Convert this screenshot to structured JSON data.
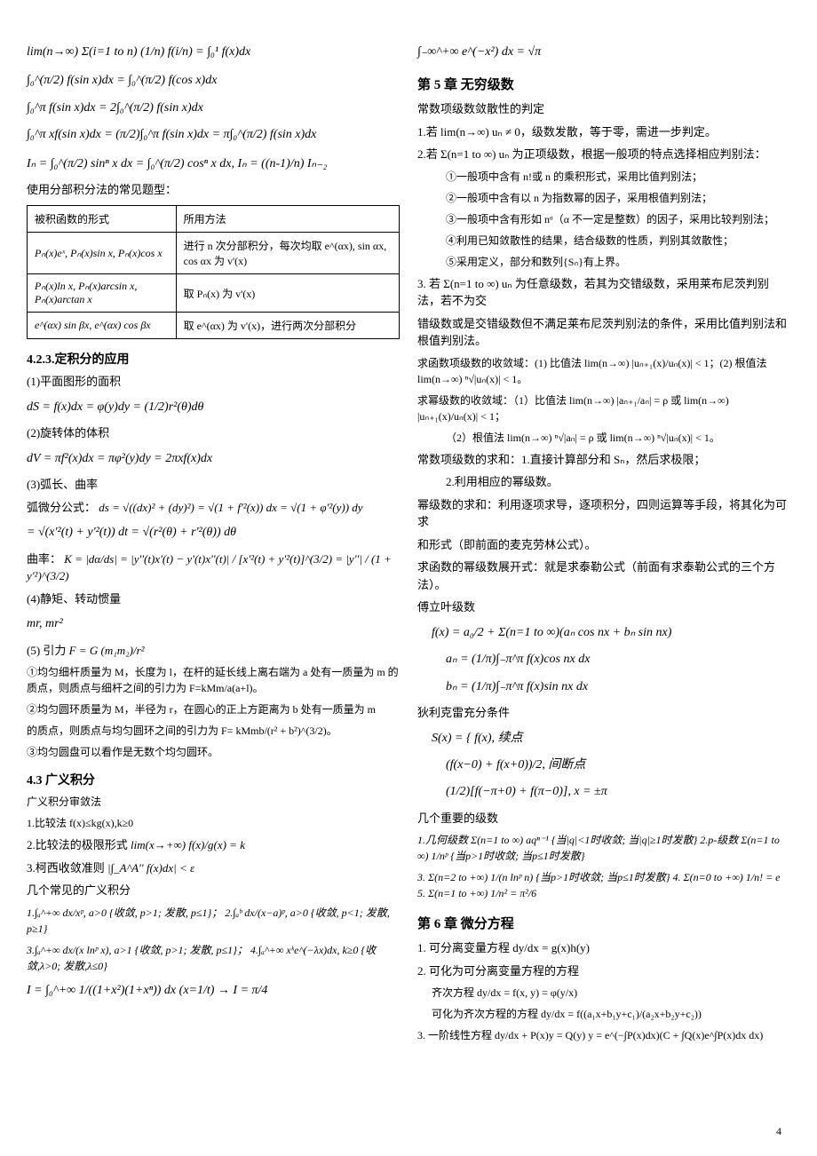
{
  "left_column": {
    "formula_1": "lim(n→∞) Σ(i=1 to n) (1/n) f(i/n) = ∫₀¹ f(x)dx",
    "formula_2": "∫₀^(π/2) f(sin x)dx = ∫₀^(π/2) f(cos x)dx",
    "formula_3": "∫₀^π f(sin x)dx = 2∫₀^(π/2) f(sin x)dx",
    "formula_4": "∫₀^π xf(sin x)dx = (π/2)∫₀^π f(sin x)dx = π∫₀^(π/2) f(sin x)dx",
    "formula_5": "Iₙ = ∫₀^(π/2) sinⁿ x dx = ∫₀^(π/2) cosⁿ x dx, Iₙ = ((n-1)/n) Iₙ₋₂",
    "table_intro": "使用分部积分法的常见题型：",
    "table": {
      "header_1": "被积函数的形式",
      "header_2": "所用方法",
      "row_1_col_1": "Pₙ(x)eˣ, Pₙ(x)sin x, Pₙ(x)cos x",
      "row_1_col_2": "进行 n 次分部积分，每次均取 e^(αx), sin αx, cos αx 为 v'(x)",
      "row_2_col_1": "Pₙ(x)ln x, Pₙ(x)arcsin x, Pₙ(x)arctan x",
      "row_2_col_2": "取 Pₙ(x) 为 v'(x)",
      "row_3_col_1": "e^(αx) sin βx, e^(αx) cos βx",
      "row_3_col_2": "取 e^(αx) 为 v'(x)，进行两次分部积分"
    },
    "section_423": "4.2.3.定积分的应用",
    "item_1": "(1)平面图形的面积",
    "formula_ds": "dS = f(x)dx = φ(y)dy = (1/2)r²(θ)dθ",
    "item_2": "(2)旋转体的体积",
    "formula_dv": "dV = πf²(x)dx = πφ²(y)dy = 2πxf(x)dx",
    "item_3": "(3)弧长、曲率",
    "arc_label": "弧微分公式：",
    "formula_arc": "ds = √((dx)² + (dy)²) = √(1 + f'²(x)) dx = √(1 + φ'²(y)) dy",
    "formula_arc2": "= √(x'²(t) + y'²(t)) dt = √(r²(θ) + r'²(θ)) dθ",
    "curvature_label": "曲率：",
    "formula_curvature": "K = |dα/ds| = |y''(t)x'(t) − y'(t)x''(t)| / [x'²(t) + y'²(t)]^(3/2) = |y''| / (1 + y'²)^(3/2)",
    "item_4": "(4)静矩、转动惯量",
    "formula_moment": "mr,  mr²",
    "item_5": "(5) 引力",
    "formula_gravity": "F = G (m₁m₂)/r²",
    "gravity_text_1": "①均匀细杆质量为 M，长度为 l，在杆的延长线上离右端为 a 处有一质量为 m 的质点，则质点与细杆之间的引力为 F=kMm/a(a+l)。",
    "gravity_text_2": "②均匀圆环质量为 M，半径为 r，在圆心的正上方距离为 b 处有一质量为 m",
    "gravity_text_2b": "的质点，则质点与均匀圆环之间的引力为 F= kMmb/(r² + b²)^(3/2)。",
    "gravity_text_3": "③均匀圆盘可以看作是无数个均匀圆环。",
    "section_43": "4.3 广义积分",
    "improper_intro": "广义积分审敛法",
    "improper_1": "1.比较法 f(x)≤kg(x),k≥0",
    "improper_2": "2.比较法的极限形式",
    "formula_limit_compare": "lim(x→+∞) f(x)/g(x) = k",
    "improper_3": "3.柯西收敛准则",
    "formula_cauchy": "|∫_A^A'' f(x)dx| < ε",
    "common_integrals": "几个常见的广义积分",
    "int_1": "1.∫ₐ^+∞ dx/xᵖ, a>0 {收敛, p>1; 发散, p≤1}；",
    "int_2": "2.∫ₐᵇ dx/(x−a)ᵖ, a>0 {收敛, p<1; 发散, p≥1}",
    "int_3": "3.∫ₐ^+∞ dx/(x lnᵖ x), a>1 {收敛, p>1; 发散, p≤1}；",
    "int_4": "4.∫ₐ^+∞ xᵏe^(−λx)dx, k≥0 {收敛,λ>0; 发散,λ≤0}",
    "formula_I": "I = ∫₀^+∞ 1/((1+x²)(1+xⁿ)) dx  (x=1/t) → I = π/4"
  },
  "right_column": {
    "formula_gauss": "∫₋∞^+∞ e^(−x²) dx = √π",
    "chapter_5": "第 5 章 无穷级数",
    "const_series_intro": "常数项级数敛散性的判定",
    "test_1": "1.若 lim(n→∞) uₙ ≠ 0，级数发散，等于零，需进一步判定。",
    "test_2": "2.若 Σ(n=1 to ∞) uₙ 为正项级数，根据一般项的特点选择相应判别法：",
    "test_2_sub_1": "①一般项中含有 n!或 n 的乘积形式，采用比值判别法；",
    "test_2_sub_2": "②一般项中含有以 n 为指数幂的因子，采用根值判别法；",
    "test_2_sub_3": "③一般项中含有形如 nᵅ（α 不一定是整数）的因子，采用比较判别法；",
    "test_2_sub_4": "④利用已知敛散性的结果，结合级数的性质，判别其敛散性；",
    "test_2_sub_5": "⑤采用定义，部分和数列{Sₙ}有上界。",
    "test_3": "3. 若 Σ(n=1 to ∞) uₙ 为任意级数，若其为交错级数，采用莱布尼茨判别法，若不为交",
    "test_3b": "错级数或是交错级数但不满足莱布尼茨判别法的条件，采用比值判别法和根值判别法。",
    "func_series": "求函数项级数的收敛域：(1) 比值法 lim(n→∞) |uₙ₊₁(x)/uₙ(x)| < 1；(2) 根值法 lim(n→∞) ⁿ√|uₙ(x)| < 1。",
    "power_series": "求幂级数的收敛域：（1）比值法 lim(n→∞) |aₙ₊₁/aₙ| = ρ 或 lim(n→∞) |uₙ₊₁(x)/uₙ(x)| < 1；",
    "power_series_2": "（2）根值法 lim(n→∞) ⁿ√|aₙ| = ρ 或 lim(n→∞) ⁿ√|uₙ(x)| < 1。",
    "const_sum": "常数项级数的求和：1.直接计算部分和 Sₙ，然后求极限；",
    "const_sum_2": "2.利用相应的幂级数。",
    "power_sum": "幂级数的求和：利用逐项求导，逐项积分，四则运算等手段，将其化为可求",
    "power_sum_2": "和形式（即前面的麦克劳林公式）。",
    "func_expand": "求函数的幂级数展开式：就是求泰勒公式（前面有求泰勒公式的三个方法）。",
    "fourier_label": "傅立叶级数",
    "formula_fourier": "f(x) = a₀/2 + Σ(n=1 to ∞)(aₙ cos nx + bₙ sin nx)",
    "formula_fourier_an": "aₙ = (1/π)∫₋π^π f(x)cos nx dx",
    "formula_fourier_bn": "bₙ = (1/π)∫₋π^π f(x)sin nx dx",
    "dirichlet_label": "狄利克雷充分条件",
    "formula_dirichlet_1": "S(x) = { f(x), 续点",
    "formula_dirichlet_2": "(f(x−0) + f(x+0))/2, 间断点",
    "formula_dirichlet_3": "(1/2)[f(−π+0) + f(π−0)], x = ±π",
    "important_series": "几个重要的级数",
    "series_1": "1.几何级数 Σ(n=1 to ∞) aqⁿ⁻¹ {当|q|<1时收敛; 当|q|≥1时发散}",
    "series_2": "2.p-级数 Σ(n=1 to ∞) 1/nᵖ {当p>1时收敛; 当p≤1时发散}",
    "series_3": "3. Σ(n=2 to +∞) 1/(n lnᵖ n) {当p>1时收敛; 当p≤1时发散}",
    "series_4": "4. Σ(n=0 to +∞) 1/n! = e",
    "series_5": "5. Σ(n=1 to +∞) 1/n² = π²/6",
    "chapter_6": "第 6 章 微分方程",
    "de_1": "1. 可分离变量方程 dy/dx = g(x)h(y)",
    "de_2": "2. 可化为可分离变量方程的方程",
    "de_2_sub1": "齐次方程 dy/dx = f(x, y) = φ(y/x)",
    "de_2_sub2": "可化为齐次方程的方程 dy/dx = f((a₁x+b₁y+c₁)/(a₂x+b₂y+c₂))",
    "de_3": "3. 一阶线性方程 dy/dx + P(x)y = Q(y)   y = e^(−∫P(x)dx)(C + ∫Q(x)e^∫P(x)dx dx)"
  },
  "page_number": "4"
}
